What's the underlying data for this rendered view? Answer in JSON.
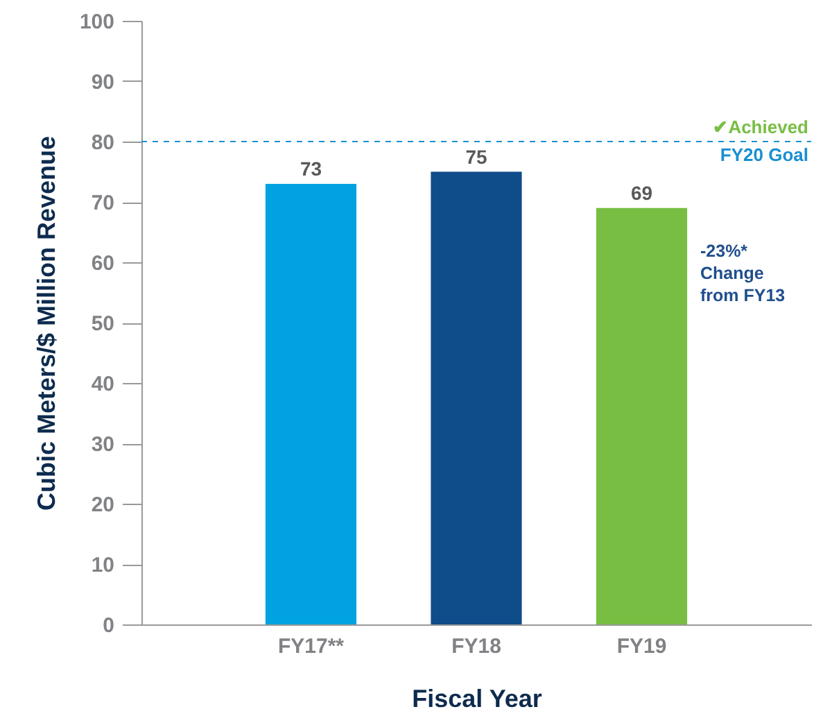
{
  "chart_data": {
    "type": "bar",
    "xlabel": "Fiscal Year",
    "ylabel": "Cubic Meters/$ Million Revenue",
    "categories": [
      "FY17**",
      "FY18",
      "FY19"
    ],
    "values": [
      73,
      75,
      69
    ],
    "colors": [
      "#00a3e0",
      "#0f4c8a",
      "#78be43"
    ],
    "ylim": [
      0,
      100
    ],
    "yticks": [
      0,
      10,
      20,
      30,
      40,
      50,
      60,
      70,
      80,
      90,
      100
    ],
    "grid": false,
    "data_labels": true,
    "ref_lines": [
      {
        "axis": "y",
        "value": 80,
        "label": "FY20 Goal",
        "color": "#1a8fd1",
        "line_style": "dashed"
      }
    ],
    "annotations": [
      "✔Achieved",
      "-23%* Change from FY13"
    ]
  }
}
